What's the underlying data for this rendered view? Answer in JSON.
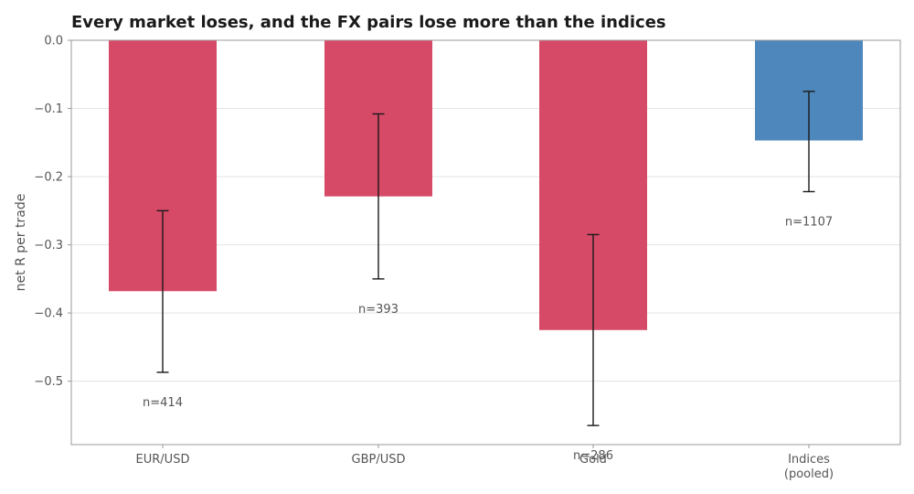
{
  "chart_data": {
    "type": "bar",
    "title": "Every market loses, and the FX pairs lose more than the indices",
    "xlabel": "",
    "ylabel": "net R per trade",
    "ylim": [
      -0.593,
      0.0
    ],
    "yticks": [
      "0.0",
      "−0.1",
      "−0.2",
      "−0.3",
      "−0.4",
      "−0.5"
    ],
    "ytick_values": [
      0.0,
      -0.1,
      -0.2,
      -0.3,
      -0.4,
      -0.5
    ],
    "grid": "horizontal",
    "legend": "none",
    "categories": [
      [
        "EUR/USD"
      ],
      [
        "GBP/USD"
      ],
      [
        "Gold"
      ],
      [
        "Indices",
        "(pooled)"
      ]
    ],
    "values": [
      -0.368,
      -0.229,
      -0.425,
      -0.147
    ],
    "error_low": [
      -0.487,
      -0.35,
      -0.565,
      -0.222
    ],
    "error_high": [
      -0.25,
      -0.108,
      -0.285,
      -0.075
    ],
    "n_labels": [
      "n=414",
      "n=393",
      "n=286",
      "n=1107"
    ],
    "colors": [
      "#d64a67",
      "#d64a67",
      "#d64a67",
      "#4d87bc"
    ]
  }
}
